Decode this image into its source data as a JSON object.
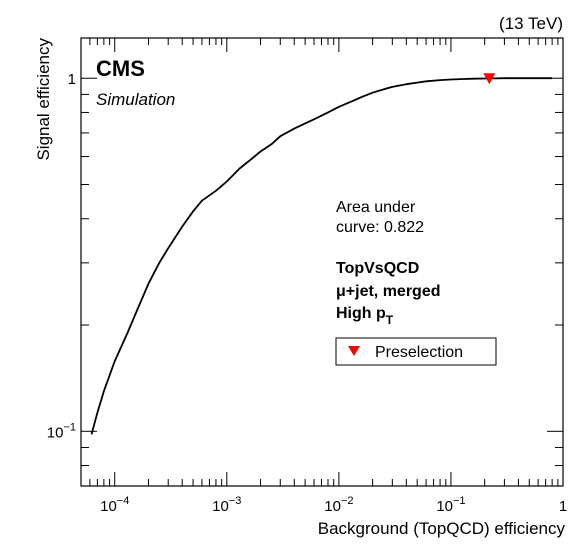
{
  "chart_data": {
    "type": "line",
    "xscale": "log",
    "yscale": "log",
    "xlim": [
      5e-05,
      1.0
    ],
    "ylim": [
      0.07,
      1.3
    ],
    "xlabel": "Background (TopQCD) efficiency",
    "ylabel": "Signal efficiency",
    "x_ticks": [
      {
        "value": 0.0001,
        "base": "10",
        "exp": "−4"
      },
      {
        "value": 0.001,
        "base": "10",
        "exp": "−3"
      },
      {
        "value": 0.01,
        "base": "10",
        "exp": "−2"
      },
      {
        "value": 0.1,
        "base": "10",
        "exp": "−1"
      },
      {
        "value": 1.0,
        "base": "1",
        "exp": ""
      }
    ],
    "y_ticks": [
      {
        "value": 0.1,
        "base": "10",
        "exp": "−1"
      },
      {
        "value": 1.0,
        "base": "1",
        "exp": ""
      }
    ],
    "series": [
      {
        "color": "#000000",
        "x": [
          6.2e-05,
          7e-05,
          8e-05,
          0.0001,
          0.00013,
          0.00016,
          0.0002,
          0.00025,
          0.0003,
          0.0004,
          0.0005,
          0.0006,
          0.0008,
          0.001,
          0.0013,
          0.0016,
          0.002,
          0.0025,
          0.003,
          0.004,
          0.005,
          0.006,
          0.008,
          0.01,
          0.013,
          0.016,
          0.02,
          0.025,
          0.03,
          0.04,
          0.05,
          0.06,
          0.08,
          0.1,
          0.13,
          0.16,
          0.2,
          0.25,
          0.3,
          0.4,
          0.5,
          0.6,
          0.8
        ],
        "y": [
          0.098,
          0.113,
          0.13,
          0.158,
          0.19,
          0.222,
          0.262,
          0.3,
          0.33,
          0.38,
          0.42,
          0.45,
          0.48,
          0.51,
          0.555,
          0.585,
          0.62,
          0.65,
          0.685,
          0.72,
          0.745,
          0.765,
          0.8,
          0.83,
          0.86,
          0.885,
          0.91,
          0.93,
          0.945,
          0.962,
          0.972,
          0.98,
          0.988,
          0.992,
          0.995,
          0.997,
          0.998,
          0.999,
          1.0,
          1.0,
          1.0,
          1.0,
          1.0
        ]
      }
    ],
    "markers": [
      {
        "name": "Preselection",
        "x": 0.22,
        "y": 1.0,
        "color": "#ff0000",
        "shape": "triangle-down"
      }
    ],
    "grid": false,
    "legend_position": "right",
    "annotations": {
      "energy": "(13 TeV)",
      "experiment": "CMS",
      "subtitle": "Simulation",
      "auc_line1": "Area under",
      "auc_line2": "curve: 0.822",
      "info_line1": "TopVsQCD",
      "info_line2": "μ+jet, merged",
      "info_line3_main": "High p",
      "info_line3_sub": "T"
    },
    "legend": [
      {
        "label": "Preselection",
        "marker": "triangle-down",
        "color": "#ff0000"
      }
    ]
  }
}
